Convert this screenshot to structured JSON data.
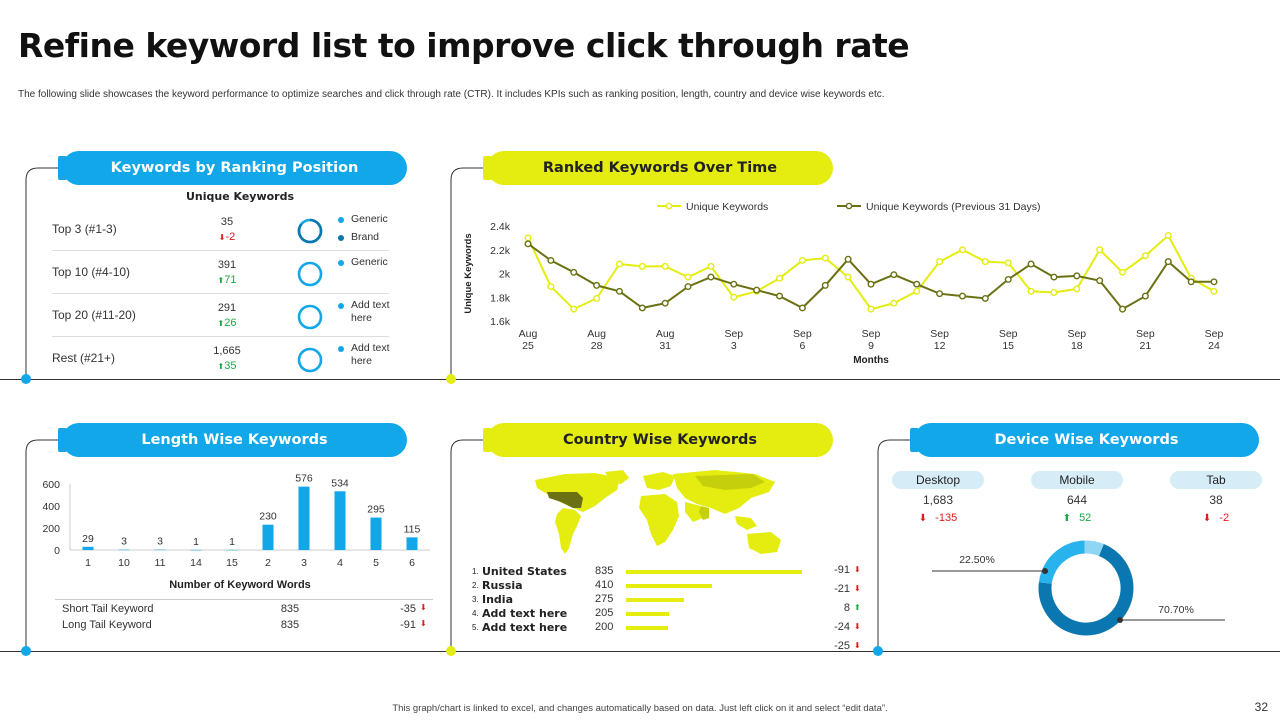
{
  "page": {
    "title": "Refine keyword list to improve click through rate",
    "subtitle": "The following slide showcases the keyword performance to optimize searches and click through rate (CTR). It includes KPIs such as ranking position, length, country and device wise keywords etc.",
    "footer": "This graph/chart is linked to excel, and changes automatically based on data. Just left click on it and select “edit data”.",
    "page_number": "32"
  },
  "colors": {
    "blue": "#12a7e8",
    "dark_blue": "#0b77b0",
    "yellow": "#e4ed0f",
    "olive": "#6b7012",
    "up": "#1ea845",
    "down": "#e01b1b"
  },
  "ranking": {
    "header": "Keywords by Ranking Position",
    "column_header": "Unique Keywords",
    "rows": [
      {
        "label": "Top 3 (#1-3)",
        "value": "35",
        "delta": "-2",
        "direction": "down",
        "legend": [
          "Generic",
          "Brand"
        ],
        "fill": 0.85
      },
      {
        "label": "Top 10 (#4-10)",
        "value": "391",
        "delta": "71",
        "direction": "up",
        "legend": [
          "Generic"
        ],
        "fill": 1.0
      },
      {
        "label": "Top 20 (#11-20)",
        "value": "291",
        "delta": "26",
        "direction": "up",
        "legend": [
          "Add text here"
        ],
        "fill": 1.0
      },
      {
        "label": "Rest (#21+)",
        "value": "1,665",
        "delta": "35",
        "direction": "up",
        "legend": [
          "Add text here"
        ],
        "fill": 1.0
      }
    ]
  },
  "over_time": {
    "header": "Ranked Keywords Over Time",
    "legend": [
      "Unique Keywords",
      "Unique Keywords (Previous 31 Days)"
    ],
    "ylabel": "Unique Keywords",
    "xlabel": "Months",
    "y_ticks": [
      "1.6k",
      "1.8k",
      "2k",
      "2.2k",
      "2.4k"
    ],
    "x_ticks": [
      [
        "Aug",
        "25"
      ],
      [
        "Aug",
        "28"
      ],
      [
        "Aug",
        "31"
      ],
      [
        "Sep",
        "3"
      ],
      [
        "Sep",
        "6"
      ],
      [
        "Sep",
        "9"
      ],
      [
        "Sep",
        "12"
      ],
      [
        "Sep",
        "15"
      ],
      [
        "Sep",
        "18"
      ],
      [
        "Sep",
        "21"
      ],
      [
        "Sep",
        "24"
      ]
    ]
  },
  "length": {
    "header": "Length Wise Keywords",
    "xlabel": "Number of  Keyword Words",
    "table": [
      {
        "label": "Short Tail Keyword",
        "value": "835",
        "delta": "-35",
        "direction": "down"
      },
      {
        "label": "Long Tail Keyword",
        "value": "835",
        "delta": "-91",
        "direction": "down"
      }
    ]
  },
  "country": {
    "header": "Country Wise Keywords",
    "rows": [
      {
        "rank": "1.",
        "name": "United States",
        "value": "835",
        "delta": "-91",
        "direction": "down"
      },
      {
        "rank": "2.",
        "name": "Russia",
        "value": "410",
        "delta": "-21",
        "direction": "down"
      },
      {
        "rank": "3.",
        "name": "India",
        "value": "275",
        "delta": "8",
        "direction": "up"
      },
      {
        "rank": "4.",
        "name": "Add text here",
        "value": "205",
        "delta": "-24",
        "direction": "down"
      },
      {
        "rank": "5.",
        "name": "Add text here",
        "value": "200",
        "delta": "-25",
        "direction": "down"
      }
    ]
  },
  "device": {
    "header": "Device Wise Keywords",
    "items": [
      {
        "name": "Desktop",
        "value": "1,683",
        "delta": "-135",
        "direction": "down"
      },
      {
        "name": "Mobile",
        "value": "644",
        "delta": "52",
        "direction": "up"
      },
      {
        "name": "Tab",
        "value": "38",
        "delta": "-2",
        "direction": "down"
      }
    ]
  },
  "chart_data": [
    {
      "type": "line",
      "title": "Ranked Keywords Over Time",
      "xlabel": "Months",
      "ylabel": "Unique Keywords",
      "ylim": [
        1600,
        2400
      ],
      "x": [
        "Aug 25",
        "Aug 26",
        "Aug 27",
        "Aug 28",
        "Aug 29",
        "Aug 30",
        "Aug 31",
        "Sep 1",
        "Sep 2",
        "Sep 3",
        "Sep 4",
        "Sep 5",
        "Sep 6",
        "Sep 7",
        "Sep 8",
        "Sep 9",
        "Sep 10",
        "Sep 11",
        "Sep 12",
        "Sep 13",
        "Sep 14",
        "Sep 15",
        "Sep 16",
        "Sep 17",
        "Sep 18",
        "Sep 19",
        "Sep 20",
        "Sep 21",
        "Sep 22",
        "Sep 23",
        "Sep 24"
      ],
      "series": [
        {
          "name": "Unique Keywords",
          "color": "#e4ed0f",
          "values": [
            2300,
            1890,
            1700,
            1790,
            2080,
            2060,
            2060,
            1970,
            2060,
            1800,
            1850,
            1960,
            2110,
            2130,
            1970,
            1700,
            1750,
            1850,
            2100,
            2200,
            2100,
            2090,
            1850,
            1840,
            1870,
            2200,
            2010,
            2150,
            2320,
            1960,
            1850
          ]
        },
        {
          "name": "Unique Keywords (Previous 31 Days)",
          "color": "#6b7012",
          "values": [
            2250,
            2110,
            2010,
            1900,
            1850,
            1710,
            1750,
            1890,
            1970,
            1910,
            1860,
            1810,
            1710,
            1900,
            2120,
            1910,
            1990,
            1910,
            1830,
            1810,
            1790,
            1950,
            2080,
            1970,
            1980,
            1940,
            1700,
            1810,
            2100,
            1930,
            1930
          ]
        }
      ]
    },
    {
      "type": "bar",
      "title": "Length Wise Keywords",
      "xlabel": "Number of  Keyword Words",
      "ylabel": "",
      "ylim": [
        0,
        600
      ],
      "y_ticks": [
        0,
        200,
        400,
        600
      ],
      "categories": [
        "1",
        "10",
        "11",
        "14",
        "15",
        "2",
        "3",
        "4",
        "5",
        "6"
      ],
      "values": [
        29,
        3,
        3,
        1,
        1,
        230,
        576,
        534,
        295,
        115
      ]
    },
    {
      "type": "bar",
      "title": "Country Wise Keywords",
      "categories": [
        "United States",
        "Russia",
        "India",
        "Add text here",
        "Add text here"
      ],
      "values": [
        835,
        410,
        275,
        205,
        200
      ]
    },
    {
      "type": "pie",
      "title": "Device Wise Keywords",
      "labels": [
        "Desktop",
        "Mobile",
        "Tab"
      ],
      "values": [
        70.7,
        22.5,
        6.8
      ],
      "shown_labels": [
        "70.70%",
        "22.50%"
      ]
    }
  ]
}
